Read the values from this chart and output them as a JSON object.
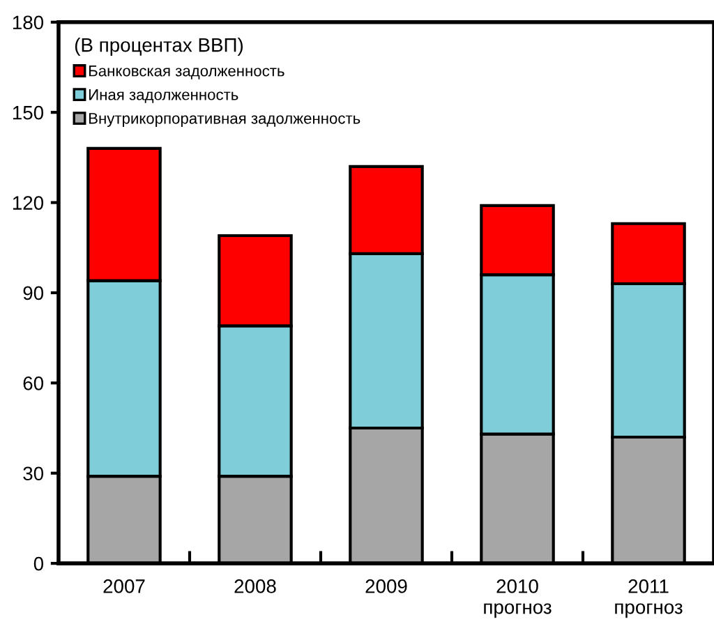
{
  "chart_data": {
    "type": "bar",
    "stacked": true,
    "legend_title": "(В процентах ВВП)",
    "categories": [
      "2007",
      "2008",
      "2009",
      "2010\nпрогноз",
      "2011\nпрогноз"
    ],
    "series": [
      {
        "name": "Внутрикорпоративная задолженность",
        "color": "#a6a6a6",
        "values": [
          29,
          29,
          45,
          43,
          42
        ]
      },
      {
        "name": "Иная задолженность",
        "color": "#7fcdd9",
        "values": [
          65,
          50,
          58,
          53,
          51
        ]
      },
      {
        "name": "Банковская задолженность",
        "color": "#ff0000",
        "values": [
          44,
          30,
          29,
          23,
          20
        ]
      }
    ],
    "ylim": [
      0,
      180
    ],
    "yticks": [
      0,
      30,
      60,
      90,
      120,
      150,
      180
    ],
    "grid": false,
    "legend": "top left"
  }
}
